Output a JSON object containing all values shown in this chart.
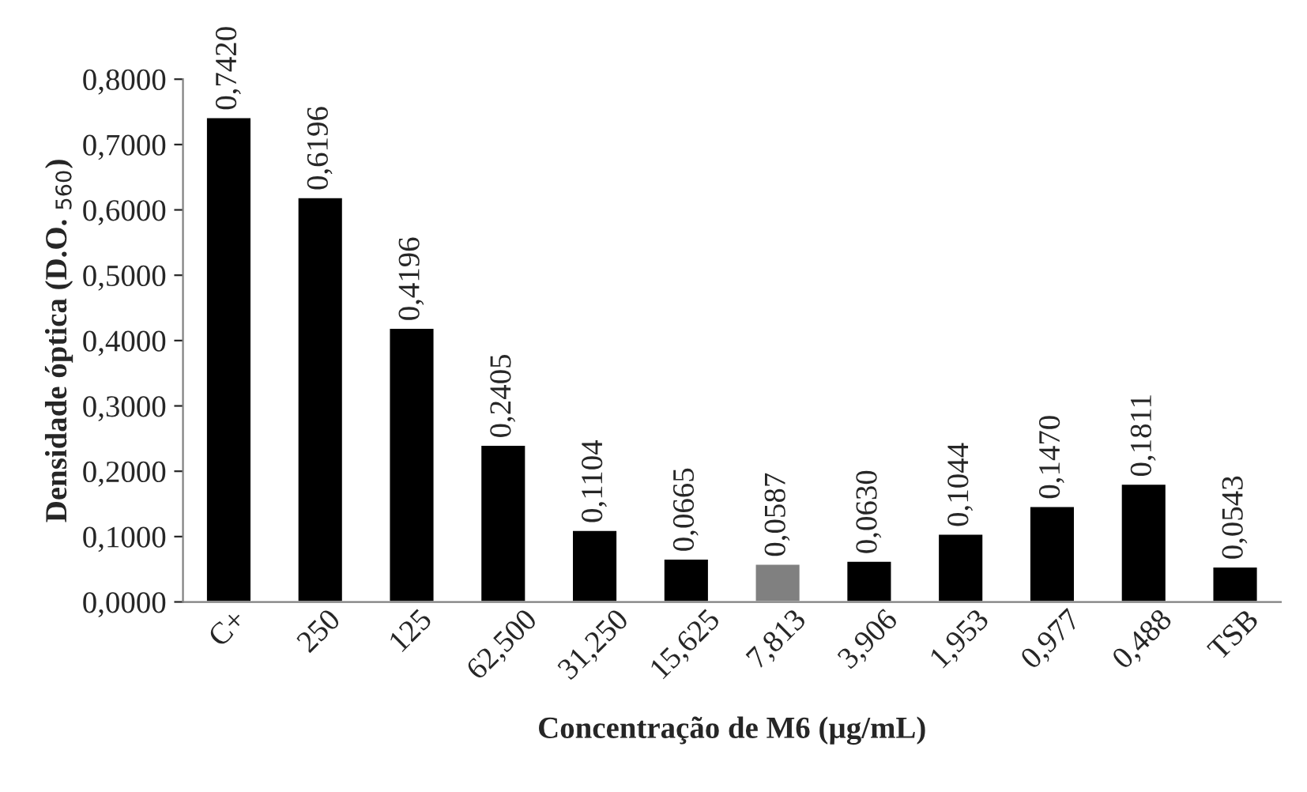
{
  "chart_data": {
    "type": "bar",
    "xlabel": "Concentração de M6 (µg/mL)",
    "ylabel": "Densidade óptica (D.O. $_{560}$)",
    "categories": [
      "C+",
      "250",
      "125",
      "62,500",
      "31,250",
      "15,625",
      "7,813",
      "3,906",
      "1,953",
      "0,977",
      "0,488",
      "TSB"
    ],
    "values": [
      0.742,
      0.6196,
      0.4196,
      0.2405,
      0.1104,
      0.0665,
      0.0587,
      0.063,
      0.1044,
      0.147,
      0.1811,
      0.0543
    ],
    "value_labels": [
      "0,7420",
      "0,6196",
      "0,4196",
      "0,2405",
      "0,1104",
      "0,0665",
      "0,0587",
      "0,0630",
      "0,1044",
      "0,1470",
      "0,1811",
      "0,0543"
    ],
    "colors": [
      "#000000",
      "#000000",
      "#000000",
      "#000000",
      "#000000",
      "#000000",
      "#808080",
      "#000000",
      "#000000",
      "#000000",
      "#000000",
      "#000000"
    ],
    "ylim": [
      0,
      0.8
    ],
    "yticks": [
      {
        "value": 0,
        "label": "0,0000"
      },
      {
        "value": 0.1,
        "label": "0,1000"
      },
      {
        "value": 0.2,
        "label": "0,2000"
      },
      {
        "value": 0.3,
        "label": "0,3000"
      },
      {
        "value": 0.4,
        "label": "0,4000"
      },
      {
        "value": 0.5,
        "label": "0,5000"
      },
      {
        "value": 0.6,
        "label": "0,6000"
      },
      {
        "value": 0.7,
        "label": "0,7000"
      },
      {
        "value": 0.8,
        "label": "0,8000"
      }
    ],
    "grid": false
  }
}
